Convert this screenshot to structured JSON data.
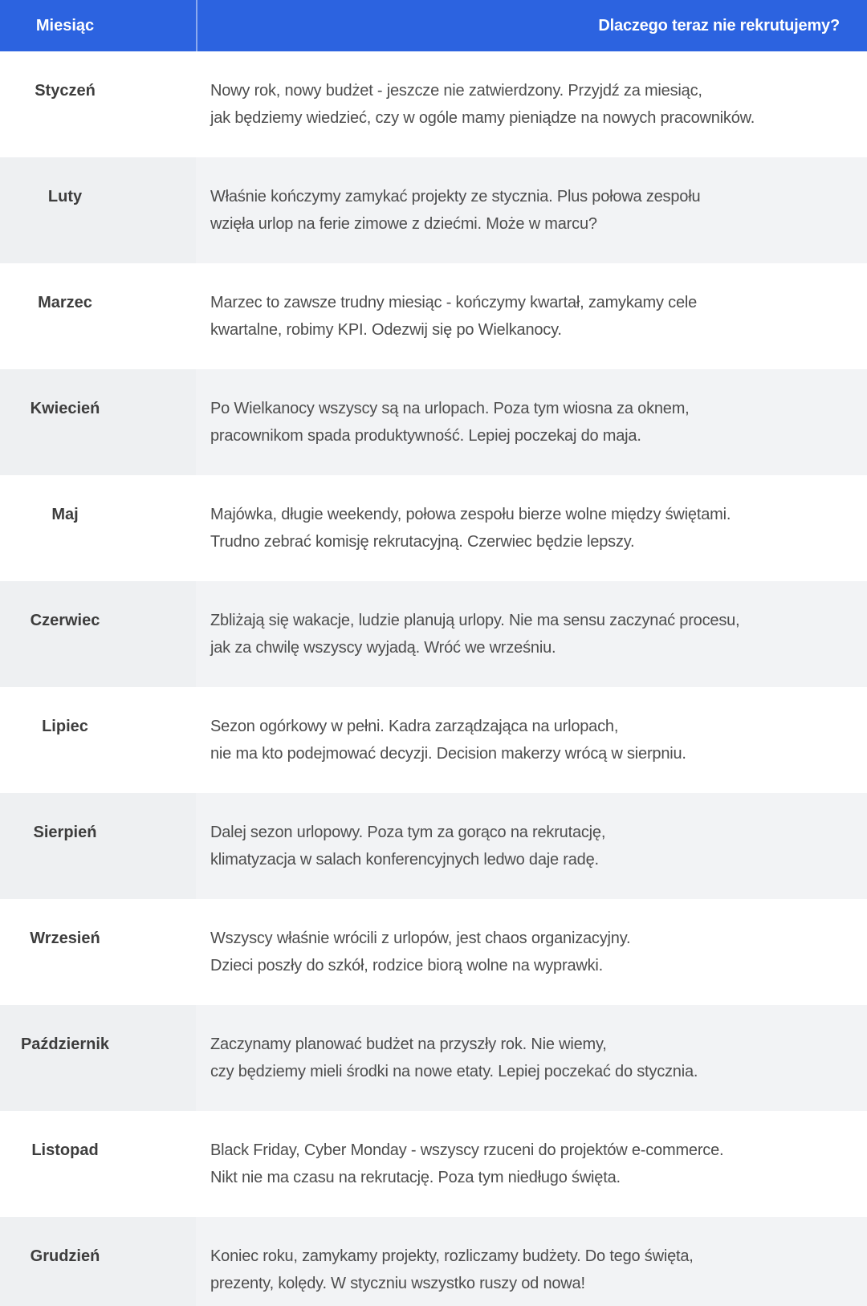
{
  "colors": {
    "header_bg": "#2c63e0",
    "header_text": "#ffffff",
    "alt_row_bg": "#f1f2f4",
    "month_text": "#3d3d3d",
    "reason_text": "#4d4d4d"
  },
  "table": {
    "header": {
      "month_col": "Miesiąc",
      "reason_col": "Dlaczego teraz nie rekrutujemy?"
    },
    "rows": [
      {
        "month": "Styczeń",
        "reason": "Nowy rok, nowy budżet - jeszcze nie zatwierdzony. Przyjdź za miesiąc,\njak będziemy wiedzieć, czy w ogóle mamy pieniądze na nowych pracowników."
      },
      {
        "month": "Luty",
        "reason": "Właśnie kończymy zamykać projekty ze stycznia. Plus połowa zespołu\nwzięła urlop na ferie zimowe z dziećmi. Może w marcu?"
      },
      {
        "month": "Marzec",
        "reason": "Marzec to zawsze trudny miesiąc - kończymy kwartał, zamykamy cele\nkwartalne, robimy KPI. Odezwij się po Wielkanocy."
      },
      {
        "month": "Kwiecień",
        "reason": "Po Wielkanocy wszyscy są na urlopach. Poza tym wiosna za oknem,\npracownikom spada produktywność. Lepiej poczekaj do maja."
      },
      {
        "month": "Maj",
        "reason": "Majówka, długie weekendy, połowa zespołu bierze wolne między świętami.\nTrudno zebrać komisję rekrutacyjną. Czerwiec będzie lepszy."
      },
      {
        "month": "Czerwiec",
        "reason": "Zbliżają się wakacje, ludzie planują urlopy. Nie ma sensu zaczynać procesu,\njak za chwilę wszyscy wyjadą. Wróć we wrześniu."
      },
      {
        "month": "Lipiec",
        "reason": "Sezon ogórkowy w pełni. Kadra zarządzająca na urlopach,\nnie ma kto podejmować decyzji. Decision makerzy wrócą w sierpniu."
      },
      {
        "month": "Sierpień",
        "reason": "Dalej sezon urlopowy. Poza tym za gorąco na rekrutację,\nklimatyzacja w salach konferencyjnych ledwo daje radę."
      },
      {
        "month": "Wrzesień",
        "reason": "Wszyscy właśnie wrócili z urlopów, jest chaos organizacyjny.\nDzieci poszły do szkół, rodzice biorą wolne na wyprawki."
      },
      {
        "month": "Październik",
        "reason": "Zaczynamy planować budżet na przyszły rok. Nie wiemy,\nczy będziemy mieli środki na nowe etaty. Lepiej poczekać do stycznia."
      },
      {
        "month": "Listopad",
        "reason": "Black Friday, Cyber Monday - wszyscy rzuceni do projektów e-commerce.\nNikt nie ma czasu na rekrutację. Poza tym niedługo święta."
      },
      {
        "month": "Grudzień",
        "reason": "Koniec roku, zamykamy projekty, rozliczamy budżety. Do tego święta,\nprezenty, kolędy. W styczniu wszystko ruszy od nowa!"
      }
    ]
  }
}
